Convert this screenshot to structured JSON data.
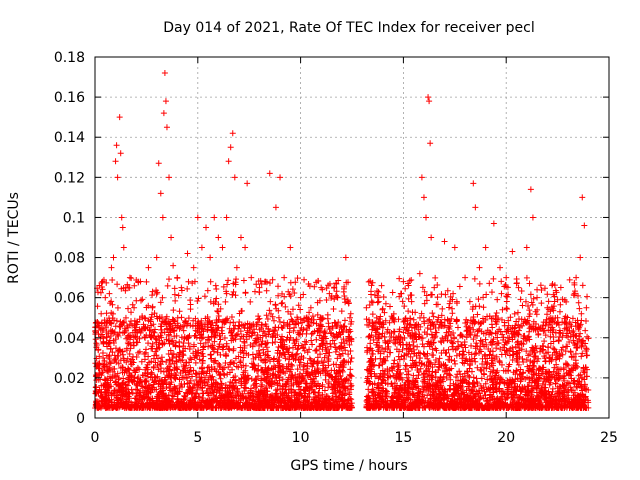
{
  "colors": {
    "points": "#ff0000",
    "axis": "#000000",
    "grid": "#a0a0a0",
    "background": "#ffffff"
  },
  "chart_data": {
    "type": "scatter",
    "title": "Day 014 of 2021, Rate Of TEC Index for receiver pecl",
    "xlabel": "GPS time / hours",
    "ylabel": "ROTI / TECUs",
    "xlim": [
      0,
      25
    ],
    "ylim": [
      0,
      0.18
    ],
    "xticks": [
      0,
      5,
      10,
      15,
      20,
      25
    ],
    "yticks": [
      0,
      0.02,
      0.04,
      0.06,
      0.08,
      0.1,
      0.12,
      0.14,
      0.16,
      0.18
    ],
    "xtick_labels": [
      "0",
      "5",
      "10",
      "15",
      "20",
      "25"
    ],
    "ytick_labels": [
      "0",
      "0.02",
      "0.04",
      "0.06",
      "0.08",
      "0.1",
      "0.12",
      "0.14",
      "0.16",
      "0.18"
    ],
    "grid": true,
    "marker": "plus",
    "series": [
      {
        "name": "ROTI",
        "points": [
          [
            0.2,
            0.045
          ],
          [
            0.3,
            0.052
          ],
          [
            0.4,
            0.038
          ],
          [
            0.5,
            0.06
          ],
          [
            0.6,
            0.048
          ],
          [
            0.7,
            0.062
          ],
          [
            0.8,
            0.075
          ],
          [
            0.9,
            0.08
          ],
          [
            1.0,
            0.128
          ],
          [
            1.05,
            0.136
          ],
          [
            1.1,
            0.12
          ],
          [
            1.2,
            0.15
          ],
          [
            1.25,
            0.132
          ],
          [
            1.3,
            0.1
          ],
          [
            1.35,
            0.095
          ],
          [
            1.4,
            0.085
          ],
          [
            1.5,
            0.065
          ],
          [
            1.7,
            0.07
          ],
          [
            1.9,
            0.055
          ],
          [
            2.1,
            0.068
          ],
          [
            2.3,
            0.05
          ],
          [
            2.6,
            0.075
          ],
          [
            2.8,
            0.063
          ],
          [
            3.0,
            0.08
          ],
          [
            3.1,
            0.127
          ],
          [
            3.2,
            0.112
          ],
          [
            3.3,
            0.1
          ],
          [
            3.35,
            0.152
          ],
          [
            3.4,
            0.172
          ],
          [
            3.45,
            0.158
          ],
          [
            3.5,
            0.145
          ],
          [
            3.6,
            0.12
          ],
          [
            3.7,
            0.09
          ],
          [
            3.8,
            0.076
          ],
          [
            4.0,
            0.07
          ],
          [
            4.2,
            0.065
          ],
          [
            4.5,
            0.082
          ],
          [
            4.8,
            0.075
          ],
          [
            5.0,
            0.1
          ],
          [
            5.2,
            0.085
          ],
          [
            5.4,
            0.095
          ],
          [
            5.6,
            0.08
          ],
          [
            5.8,
            0.1
          ],
          [
            6.0,
            0.09
          ],
          [
            6.2,
            0.085
          ],
          [
            6.4,
            0.1
          ],
          [
            6.5,
            0.128
          ],
          [
            6.6,
            0.135
          ],
          [
            6.7,
            0.142
          ],
          [
            6.8,
            0.12
          ],
          [
            6.9,
            0.075
          ],
          [
            7.1,
            0.09
          ],
          [
            7.3,
            0.085
          ],
          [
            7.4,
            0.117
          ],
          [
            7.6,
            0.07
          ],
          [
            8.0,
            0.065
          ],
          [
            8.3,
            0.068
          ],
          [
            8.5,
            0.122
          ],
          [
            8.8,
            0.105
          ],
          [
            9.0,
            0.12
          ],
          [
            9.2,
            0.07
          ],
          [
            9.5,
            0.085
          ],
          [
            10.0,
            0.06
          ],
          [
            10.5,
            0.055
          ],
          [
            11.0,
            0.065
          ],
          [
            11.4,
            0.062
          ],
          [
            11.8,
            0.06
          ],
          [
            12.2,
            0.08
          ],
          [
            12.4,
            0.05
          ],
          [
            13.2,
            0.055
          ],
          [
            13.8,
            0.058
          ],
          [
            14.0,
            0.045
          ],
          [
            14.5,
            0.05
          ],
          [
            15.0,
            0.068
          ],
          [
            15.4,
            0.058
          ],
          [
            15.8,
            0.072
          ],
          [
            15.9,
            0.12
          ],
          [
            16.0,
            0.11
          ],
          [
            16.1,
            0.1
          ],
          [
            16.2,
            0.16
          ],
          [
            16.25,
            0.158
          ],
          [
            16.3,
            0.137
          ],
          [
            16.35,
            0.09
          ],
          [
            16.5,
            0.065
          ],
          [
            17.0,
            0.088
          ],
          [
            17.5,
            0.085
          ],
          [
            18.0,
            0.07
          ],
          [
            18.4,
            0.117
          ],
          [
            18.5,
            0.105
          ],
          [
            18.7,
            0.075
          ],
          [
            19.0,
            0.085
          ],
          [
            19.4,
            0.097
          ],
          [
            19.7,
            0.075
          ],
          [
            20.0,
            0.07
          ],
          [
            20.3,
            0.083
          ],
          [
            20.6,
            0.065
          ],
          [
            21.0,
            0.085
          ],
          [
            21.2,
            0.114
          ],
          [
            21.3,
            0.1
          ],
          [
            21.5,
            0.06
          ],
          [
            22.0,
            0.055
          ],
          [
            22.5,
            0.05
          ],
          [
            23.0,
            0.045
          ],
          [
            23.4,
            0.07
          ],
          [
            23.6,
            0.08
          ],
          [
            23.7,
            0.11
          ],
          [
            23.8,
            0.096
          ],
          [
            23.9,
            0.055
          ]
        ]
      }
    ],
    "dense_band": {
      "note": "bulk of points between 0.005 and 0.05 ROTI across 0-12.5 h and 13.2-24 h",
      "segments": [
        [
          0,
          12.5
        ],
        [
          13.2,
          24.0
        ]
      ],
      "y_range": [
        0.005,
        0.05
      ]
    }
  }
}
